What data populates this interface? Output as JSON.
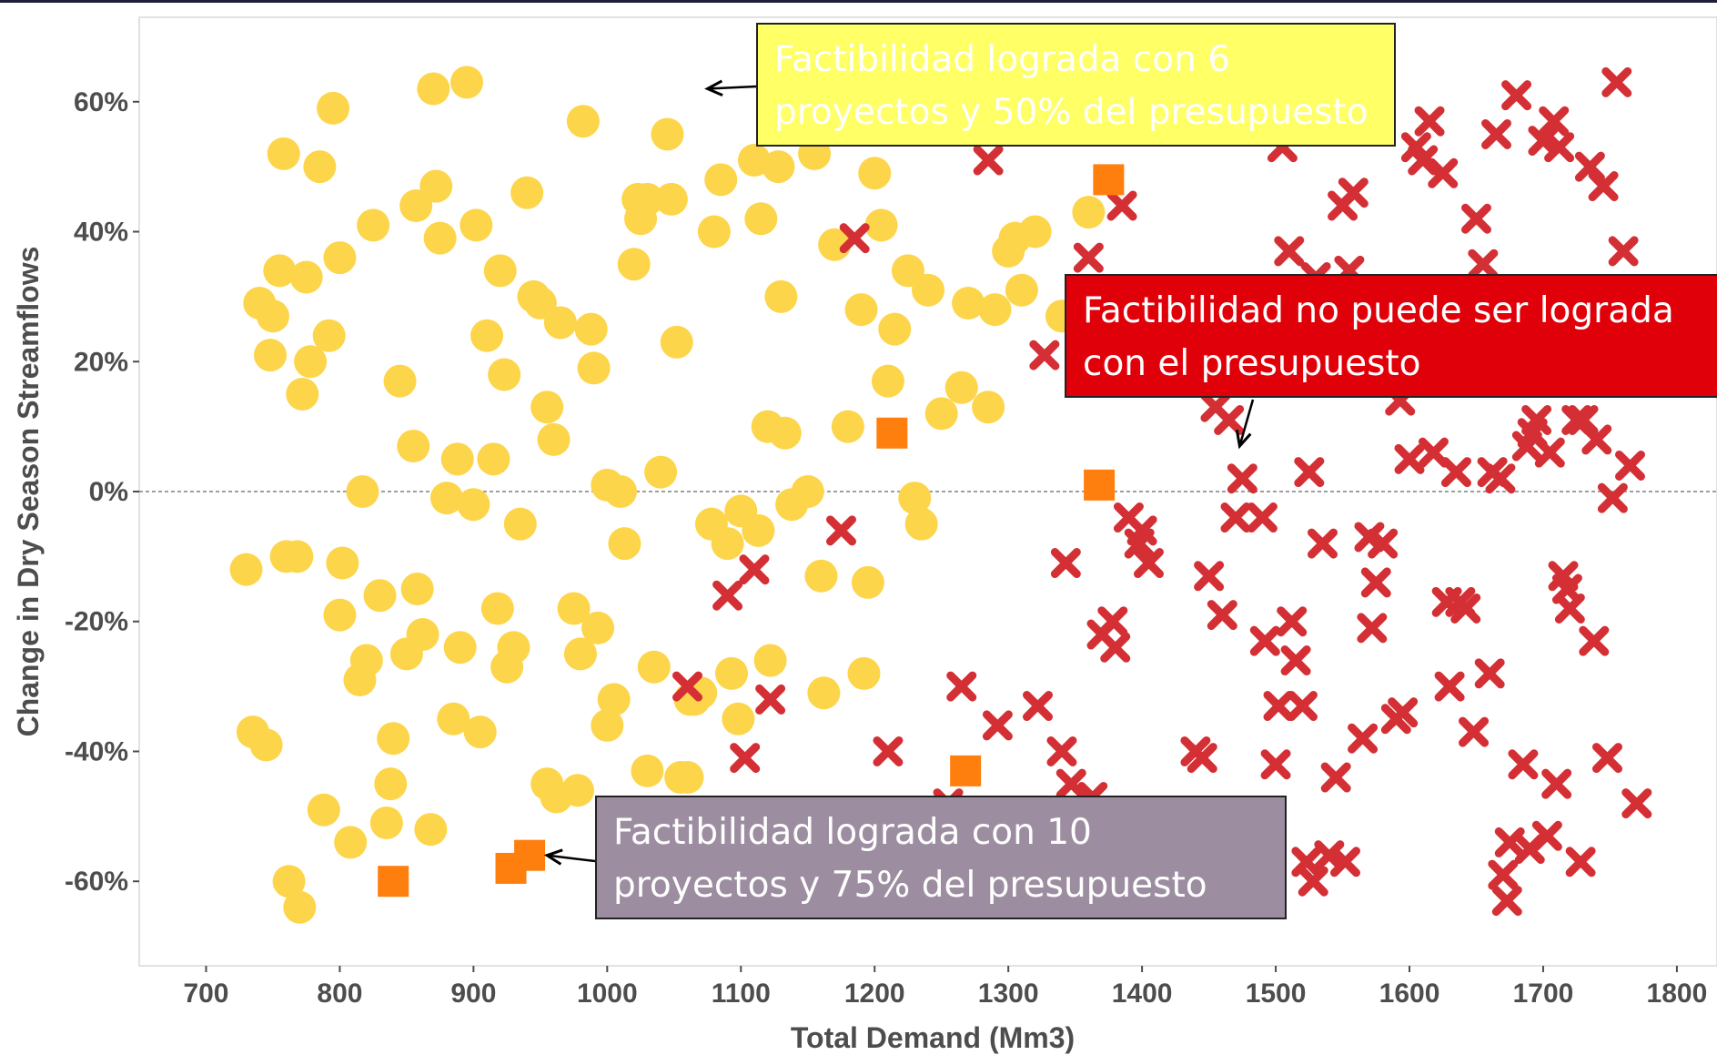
{
  "chart_data": {
    "type": "scatter",
    "xlabel": "Total Demand (Mm3)",
    "ylabel": "Change in Dry Season Streamflows",
    "xlim": [
      650,
      1830
    ],
    "ylim": [
      -73,
      73
    ],
    "x_ticks": [
      700,
      800,
      900,
      1000,
      1100,
      1200,
      1300,
      1400,
      1500,
      1600,
      1700,
      1800
    ],
    "y_ticks": [
      -60,
      -40,
      -20,
      0,
      20,
      40,
      60
    ],
    "y_tick_labels": [
      "-60%",
      "-40%",
      "-20%",
      "0%",
      "20%",
      "40%",
      "60%"
    ],
    "reference_line_y": 0,
    "grid": false,
    "series": [
      {
        "marker": "circle",
        "color": "#fdd54a",
        "points": [
          [
            730,
            -12
          ],
          [
            735,
            -37
          ],
          [
            740,
            29
          ],
          [
            745,
            -39
          ],
          [
            748,
            21
          ],
          [
            750,
            27
          ],
          [
            755,
            34
          ],
          [
            758,
            52
          ],
          [
            760,
            -10
          ],
          [
            762,
            -60
          ],
          [
            768,
            -10
          ],
          [
            770,
            -64
          ],
          [
            772,
            15
          ],
          [
            775,
            33
          ],
          [
            778,
            20
          ],
          [
            785,
            50
          ],
          [
            788,
            -49
          ],
          [
            792,
            24
          ],
          [
            795,
            59
          ],
          [
            800,
            36
          ],
          [
            800,
            -19
          ],
          [
            802,
            -11
          ],
          [
            808,
            -54
          ],
          [
            815,
            -29
          ],
          [
            817,
            0
          ],
          [
            820,
            -26
          ],
          [
            825,
            41
          ],
          [
            830,
            -16
          ],
          [
            835,
            -51
          ],
          [
            838,
            -45
          ],
          [
            840,
            -38
          ],
          [
            845,
            17
          ],
          [
            850,
            -25
          ],
          [
            855,
            7
          ],
          [
            857,
            44
          ],
          [
            858,
            -15
          ],
          [
            862,
            -22
          ],
          [
            868,
            -52
          ],
          [
            870,
            62
          ],
          [
            872,
            47
          ],
          [
            875,
            39
          ],
          [
            880,
            -1
          ],
          [
            885,
            -35
          ],
          [
            888,
            5
          ],
          [
            890,
            -24
          ],
          [
            895,
            63
          ],
          [
            900,
            -2
          ],
          [
            902,
            41
          ],
          [
            905,
            -37
          ],
          [
            910,
            24
          ],
          [
            915,
            5
          ],
          [
            918,
            -18
          ],
          [
            920,
            34
          ],
          [
            923,
            18
          ],
          [
            925,
            -27
          ],
          [
            930,
            -24
          ],
          [
            935,
            -5
          ],
          [
            940,
            46
          ],
          [
            945,
            30
          ],
          [
            950,
            29
          ],
          [
            955,
            13
          ],
          [
            955,
            -45
          ],
          [
            960,
            8
          ],
          [
            962,
            -47
          ],
          [
            965,
            26
          ],
          [
            975,
            -18
          ],
          [
            978,
            -46
          ],
          [
            980,
            -25
          ],
          [
            982,
            57
          ],
          [
            988,
            25
          ],
          [
            990,
            19
          ],
          [
            993,
            -21
          ],
          [
            1000,
            -36
          ],
          [
            1000,
            1
          ],
          [
            1005,
            -32
          ],
          [
            1010,
            0
          ],
          [
            1013,
            -8
          ],
          [
            1020,
            35
          ],
          [
            1023,
            45
          ],
          [
            1025,
            42
          ],
          [
            1030,
            -43
          ],
          [
            1030,
            45
          ],
          [
            1035,
            -27
          ],
          [
            1040,
            3
          ],
          [
            1045,
            55
          ],
          [
            1048,
            45
          ],
          [
            1052,
            23
          ],
          [
            1055,
            -44
          ],
          [
            1060,
            -44
          ],
          [
            1062,
            -32
          ],
          [
            1065,
            -32
          ],
          [
            1070,
            -31
          ],
          [
            1078,
            -5
          ],
          [
            1080,
            40
          ],
          [
            1085,
            48
          ],
          [
            1090,
            -8
          ],
          [
            1093,
            -28
          ],
          [
            1098,
            -35
          ],
          [
            1100,
            -3
          ],
          [
            1110,
            51
          ],
          [
            1113,
            -6
          ],
          [
            1115,
            42
          ],
          [
            1120,
            10
          ],
          [
            1122,
            -26
          ],
          [
            1128,
            50
          ],
          [
            1130,
            30
          ],
          [
            1133,
            9
          ],
          [
            1138,
            -2
          ],
          [
            1150,
            0
          ],
          [
            1155,
            52
          ],
          [
            1160,
            -13
          ],
          [
            1162,
            -31
          ],
          [
            1170,
            38
          ],
          [
            1180,
            10
          ],
          [
            1190,
            28
          ],
          [
            1192,
            -28
          ],
          [
            1195,
            -14
          ],
          [
            1200,
            49
          ],
          [
            1205,
            41
          ],
          [
            1210,
            17
          ],
          [
            1215,
            25
          ],
          [
            1225,
            34
          ],
          [
            1230,
            -1
          ],
          [
            1235,
            -5
          ],
          [
            1240,
            31
          ],
          [
            1250,
            12
          ],
          [
            1265,
            16
          ],
          [
            1270,
            29
          ],
          [
            1285,
            13
          ],
          [
            1290,
            28
          ],
          [
            1300,
            37
          ],
          [
            1305,
            39
          ],
          [
            1310,
            31
          ],
          [
            1320,
            40
          ],
          [
            1340,
            27
          ],
          [
            1360,
            43
          ]
        ]
      },
      {
        "marker": "x",
        "color": "#d32f34",
        "points": [
          [
            1060,
            -30
          ],
          [
            1090,
            -16
          ],
          [
            1103,
            -41
          ],
          [
            1110,
            -12
          ],
          [
            1122,
            -32
          ],
          [
            1175,
            -6
          ],
          [
            1185,
            39
          ],
          [
            1210,
            -40
          ],
          [
            1255,
            -48
          ],
          [
            1265,
            -30
          ],
          [
            1285,
            51
          ],
          [
            1292,
            -36
          ],
          [
            1322,
            -33
          ],
          [
            1327,
            21
          ],
          [
            1340,
            -40
          ],
          [
            1343,
            -11
          ],
          [
            1347,
            -45
          ],
          [
            1360,
            36
          ],
          [
            1363,
            -47
          ],
          [
            1370,
            -22
          ],
          [
            1378,
            -20
          ],
          [
            1380,
            -24
          ],
          [
            1385,
            44
          ],
          [
            1390,
            -4
          ],
          [
            1398,
            -8
          ],
          [
            1400,
            -6
          ],
          [
            1405,
            -11
          ],
          [
            1440,
            -40
          ],
          [
            1445,
            -41
          ],
          [
            1450,
            -13
          ],
          [
            1455,
            13
          ],
          [
            1460,
            -19
          ],
          [
            1465,
            11
          ],
          [
            1470,
            -4
          ],
          [
            1475,
            2
          ],
          [
            1490,
            -4
          ],
          [
            1492,
            -23
          ],
          [
            1500,
            -42
          ],
          [
            1502,
            -33
          ],
          [
            1505,
            53
          ],
          [
            1510,
            37
          ],
          [
            1512,
            -20
          ],
          [
            1515,
            -26
          ],
          [
            1520,
            -33
          ],
          [
            1523,
            -57
          ],
          [
            1525,
            3
          ],
          [
            1528,
            -60
          ],
          [
            1530,
            33
          ],
          [
            1535,
            -8
          ],
          [
            1540,
            -56
          ],
          [
            1545,
            -44
          ],
          [
            1550,
            44
          ],
          [
            1552,
            -57
          ],
          [
            1555,
            34
          ],
          [
            1558,
            46
          ],
          [
            1565,
            -38
          ],
          [
            1570,
            -7
          ],
          [
            1572,
            -21
          ],
          [
            1575,
            -14
          ],
          [
            1580,
            -8
          ],
          [
            1590,
            -35
          ],
          [
            1593,
            14
          ],
          [
            1595,
            -34
          ],
          [
            1600,
            5
          ],
          [
            1605,
            53
          ],
          [
            1610,
            51
          ],
          [
            1615,
            57
          ],
          [
            1618,
            6
          ],
          [
            1625,
            49
          ],
          [
            1628,
            -17
          ],
          [
            1630,
            -30
          ],
          [
            1635,
            3
          ],
          [
            1638,
            -17
          ],
          [
            1642,
            -18
          ],
          [
            1648,
            -37
          ],
          [
            1650,
            42
          ],
          [
            1655,
            35
          ],
          [
            1660,
            -28
          ],
          [
            1662,
            3
          ],
          [
            1665,
            55
          ],
          [
            1668,
            2
          ],
          [
            1670,
            -59
          ],
          [
            1673,
            -63
          ],
          [
            1675,
            -54
          ],
          [
            1680,
            61
          ],
          [
            1685,
            -42
          ],
          [
            1688,
            7
          ],
          [
            1690,
            -55
          ],
          [
            1692,
            9
          ],
          [
            1695,
            11
          ],
          [
            1700,
            54
          ],
          [
            1703,
            -53
          ],
          [
            1705,
            6
          ],
          [
            1708,
            57
          ],
          [
            1710,
            -45
          ],
          [
            1712,
            53
          ],
          [
            1715,
            -13
          ],
          [
            1718,
            -15
          ],
          [
            1720,
            -18
          ],
          [
            1725,
            11
          ],
          [
            1728,
            -57
          ],
          [
            1730,
            11
          ],
          [
            1735,
            50
          ],
          [
            1738,
            -23
          ],
          [
            1740,
            8
          ],
          [
            1745,
            47
          ],
          [
            1748,
            -41
          ],
          [
            1752,
            -1
          ],
          [
            1755,
            63
          ],
          [
            1760,
            37
          ],
          [
            1765,
            4
          ],
          [
            1770,
            -48
          ]
        ]
      },
      {
        "marker": "square",
        "color": "#ff7f0e",
        "points": [
          [
            840,
            -60
          ],
          [
            928,
            -58
          ],
          [
            942,
            -56
          ],
          [
            1213,
            9
          ],
          [
            1268,
            -43
          ],
          [
            1368,
            1
          ],
          [
            1375,
            48
          ]
        ]
      }
    ],
    "annotations": [
      {
        "text_lines": [
          "Factibilidad lograda con 6",
          "proyectos y 50% del presupuesto"
        ],
        "fill": "#ffff66",
        "arrow_to": [
          1075,
          62
        ]
      },
      {
        "text_lines": [
          "Factibilidad no puede ser lograda",
          "con el presupuesto"
        ],
        "fill": "#e0000a",
        "arrow_to": [
          1473,
          7
        ]
      },
      {
        "text_lines": [
          "Factibilidad lograda con 10",
          "proyectos y 75% del presupuesto"
        ],
        "fill": "#9c8ea0",
        "arrow_to": [
          955,
          -56
        ]
      }
    ]
  }
}
